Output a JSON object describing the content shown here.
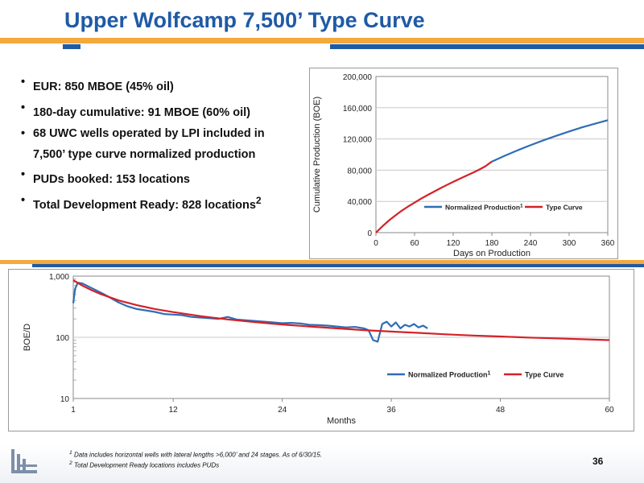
{
  "title": "Upper Wolfcamp 7,500’ Type Curve",
  "bullets": [
    {
      "text": "EUR:  850 MBOE (45% oil)",
      "sup": ""
    },
    {
      "text": "180-day cumulative:  91 MBOE (60% oil)",
      "sup": ""
    },
    {
      "text": "68 UWC wells operated by LPI included in 7,500’ type curve normalized production",
      "sup": ""
    },
    {
      "text": "PUDs booked:  153 locations",
      "sup": ""
    },
    {
      "text": "Total Development Ready:  828 locations",
      "sup": "2"
    }
  ],
  "colors": {
    "title": "#1f5aa6",
    "orange": "#f3a93c",
    "blue_series": "#2f6db5",
    "red_series": "#d42128"
  },
  "chart_data": [
    {
      "type": "line",
      "title": "",
      "xlabel": "Days on Production",
      "ylabel": "Cumulative Production (BOE)",
      "xlim": [
        0,
        360
      ],
      "ylim": [
        0,
        200000
      ],
      "x_ticks": [
        0,
        60,
        120,
        180,
        240,
        300,
        360
      ],
      "y_ticks": [
        0,
        40000,
        80000,
        120000,
        160000,
        200000
      ],
      "x_tick_labels": [
        "0",
        "60",
        "120",
        "180",
        "240",
        "300",
        "360"
      ],
      "y_tick_labels": [
        "0",
        "40,000",
        "80,000",
        "120,000",
        "160,000",
        "200,000"
      ],
      "grid": true,
      "legend_placement": "bottom-right",
      "series": [
        {
          "name": "Normalized Production",
          "sup": "1",
          "color": "#2f6db5",
          "x": [
            180,
            200,
            220,
            240,
            260,
            280,
            300,
            320,
            340,
            360
          ],
          "y": [
            91000,
            98500,
            105500,
            112000,
            118200,
            124000,
            129600,
            134800,
            139500,
            144000
          ]
        },
        {
          "name": "Type Curve",
          "sup": "",
          "color": "#d42128",
          "x": [
            0,
            10,
            20,
            30,
            40,
            50,
            60,
            70,
            80,
            90,
            100,
            110,
            120,
            130,
            140,
            150,
            160,
            170,
            180
          ],
          "y": [
            0,
            8000,
            15500,
            22000,
            28000,
            33500,
            38500,
            43500,
            48000,
            52500,
            56800,
            61000,
            65000,
            69000,
            72800,
            76500,
            80500,
            85000,
            91000
          ]
        }
      ]
    },
    {
      "type": "line",
      "title": "",
      "xlabel": "Months",
      "ylabel": "BOE/D",
      "log_y": true,
      "xlim": [
        1,
        60
      ],
      "ylim": [
        10,
        1000
      ],
      "x_ticks": [
        1,
        12,
        24,
        36,
        48,
        60
      ],
      "y_ticks": [
        10,
        100,
        1000
      ],
      "x_tick_labels": [
        "1",
        "12",
        "24",
        "36",
        "48",
        "60"
      ],
      "y_tick_labels": [
        "10",
        "100",
        "1,000"
      ],
      "grid": true,
      "legend_placement": "bottom-right",
      "series": [
        {
          "name": "Normalized Production",
          "sup": "1",
          "color": "#2f6db5",
          "x": [
            1,
            1.2,
            1.5,
            2,
            3,
            4,
            5,
            6,
            7,
            8,
            9,
            10,
            11,
            12,
            13,
            14,
            15,
            16,
            17,
            18,
            19,
            20,
            21,
            22,
            23,
            24,
            25,
            26,
            27,
            28,
            29,
            30,
            31,
            32,
            33,
            33.5,
            34,
            34.5,
            35,
            35.5,
            36,
            36.5,
            37,
            37.5,
            38,
            38.5,
            39,
            39.5,
            40
          ],
          "y": [
            360,
            620,
            780,
            760,
            640,
            540,
            450,
            370,
            320,
            290,
            275,
            260,
            240,
            235,
            230,
            215,
            210,
            205,
            200,
            215,
            195,
            190,
            185,
            180,
            175,
            170,
            172,
            168,
            160,
            158,
            155,
            150,
            145,
            148,
            140,
            130,
            90,
            85,
            165,
            180,
            150,
            175,
            140,
            160,
            150,
            165,
            145,
            155,
            140
          ]
        },
        {
          "name": "Type Curve",
          "sup": "",
          "color": "#d42128",
          "x": [
            1,
            2,
            3,
            4,
            6,
            8,
            10,
            12,
            15,
            18,
            21,
            24,
            27,
            30,
            33,
            36,
            39,
            42,
            45,
            48,
            51,
            54,
            57,
            60
          ],
          "y": [
            860,
            700,
            590,
            510,
            400,
            335,
            290,
            258,
            222,
            196,
            177,
            162,
            150,
            140,
            131,
            124,
            118,
            112,
            107,
            103,
            99,
            96,
            93,
            90
          ]
        }
      ]
    }
  ],
  "footnotes": [
    {
      "sup": "1",
      "text": "Data includes horizontal wells with lateral lengths >6,000’ and 24 stages.  As of 6/30/15."
    },
    {
      "sup": "2",
      "text": "Total Development Ready locations includes PUDs"
    }
  ],
  "page_number": "36"
}
